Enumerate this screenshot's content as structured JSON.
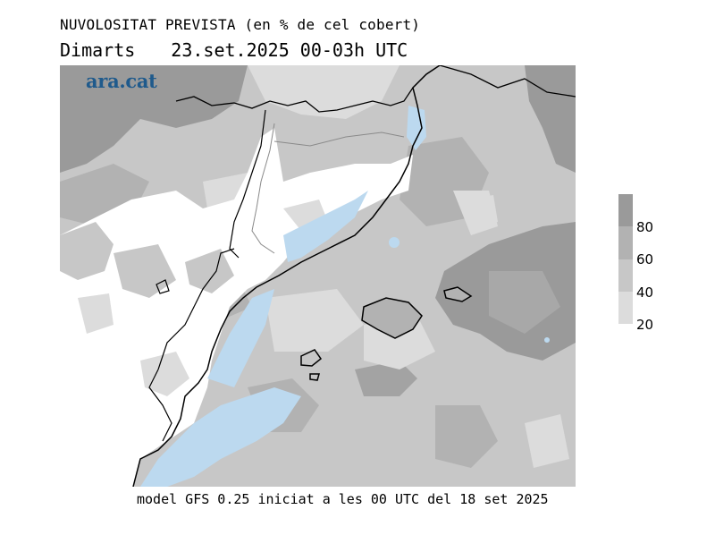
{
  "header": {
    "title": "NUVOLOSITAT PREVISTA (en % de cel cobert)",
    "day": "Dimarts",
    "period": "23.set.2025 00-03h UTC"
  },
  "brand": "ara.cat",
  "legend": {
    "labels": [
      "80",
      "60",
      "40",
      "20"
    ],
    "colors": [
      "#9a9a9a",
      "#b2b2b2",
      "#c7c7c7",
      "#dcdcdc"
    ]
  },
  "colors": {
    "land_clear": "#ffffff",
    "sea_clear": "#bcd9ef",
    "cloud_20": "#dcdcdc",
    "cloud_40": "#c7c7c7",
    "cloud_60": "#b2b2b2",
    "cloud_80": "#9a9a9a",
    "coastline": "#000000",
    "borders": "#8a8a8a"
  },
  "footer": "model GFS 0.25 iniciat a les 00 UTC del 18 set 2025"
}
